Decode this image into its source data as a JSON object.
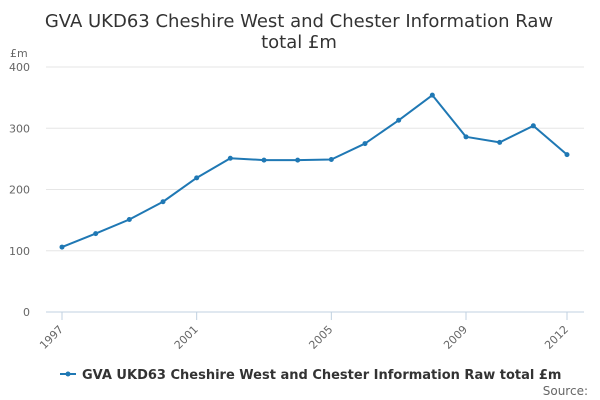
{
  "chart_data": {
    "type": "line",
    "title_line1": "GVA UKD63 Cheshire West and Chester Information Raw",
    "title_line2": "total £m",
    "ylabel": "£m",
    "ylim": [
      0,
      400
    ],
    "yticks": [
      "0",
      "100",
      "200",
      "300",
      "400"
    ],
    "x": [
      1997,
      1998,
      1999,
      2000,
      2001,
      2002,
      2003,
      2004,
      2005,
      2006,
      2007,
      2008,
      2009,
      2010,
      2011,
      2012
    ],
    "xticks": [
      "1997",
      "2001",
      "2005",
      "2009",
      "2012"
    ],
    "series": [
      {
        "name": "GVA UKD63 Cheshire West and Chester Information Raw total £m",
        "color": "#1f78b4",
        "values": [
          106,
          128,
          151,
          180,
          219,
          251,
          248,
          248,
          249,
          275,
          313,
          354,
          286,
          277,
          304,
          257
        ]
      }
    ],
    "grid": true,
    "legend_position": "bottom",
    "source_label": "Source:"
  }
}
